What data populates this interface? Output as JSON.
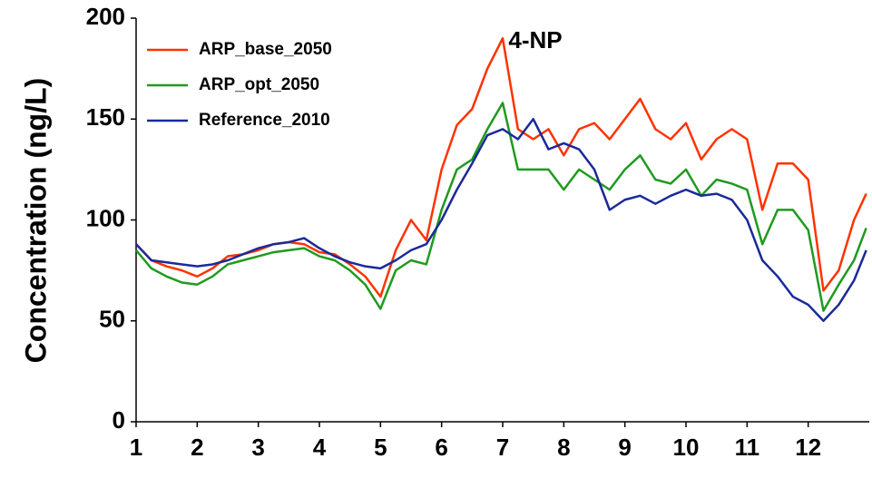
{
  "chart_data": {
    "type": "line",
    "title": "4-NP",
    "y_label": "Concentration (ng/L)",
    "x": [
      1,
      1.25,
      1.5,
      1.75,
      2,
      2.25,
      2.5,
      2.75,
      3,
      3.25,
      3.5,
      3.75,
      4,
      4.25,
      4.5,
      4.75,
      5,
      5.25,
      5.5,
      5.75,
      6,
      6.25,
      6.5,
      6.75,
      7,
      7.25,
      7.5,
      7.75,
      8,
      8.25,
      8.5,
      8.75,
      9,
      9.25,
      9.5,
      9.75,
      10,
      10.25,
      10.5,
      10.75,
      11,
      11.25,
      11.5,
      11.75,
      12,
      12.25,
      12.5,
      12.75,
      12.95
    ],
    "series": [
      {
        "name": "ARP_base_2050",
        "color": "#ff3300",
        "values": [
          88,
          80,
          77,
          75,
          72,
          76,
          82,
          83,
          85,
          88,
          89,
          88,
          84,
          83,
          78,
          72,
          62,
          85,
          100,
          90,
          125,
          147,
          155,
          175,
          190,
          145,
          140,
          145,
          132,
          145,
          148,
          140,
          150,
          160,
          145,
          140,
          148,
          130,
          140,
          145,
          140,
          105,
          128,
          128,
          120,
          65,
          75,
          100,
          113
        ]
      },
      {
        "name": "ARP_opt_2050",
        "color": "#1f9a1f",
        "values": [
          85,
          76,
          72,
          69,
          68,
          72,
          78,
          80,
          82,
          84,
          85,
          86,
          82,
          80,
          75,
          68,
          56,
          75,
          80,
          78,
          105,
          125,
          130,
          145,
          158,
          125,
          125,
          125,
          115,
          125,
          120,
          115,
          125,
          132,
          120,
          118,
          125,
          112,
          120,
          118,
          115,
          88,
          105,
          105,
          95,
          55,
          68,
          80,
          96
        ]
      },
      {
        "name": "Reference_2010",
        "color": "#1a2a99",
        "values": [
          88,
          80,
          79,
          78,
          77,
          78,
          80,
          83,
          86,
          88,
          89,
          91,
          86,
          82,
          79,
          77,
          76,
          80,
          85,
          88,
          100,
          115,
          128,
          142,
          145,
          140,
          150,
          135,
          138,
          135,
          125,
          105,
          110,
          112,
          108,
          112,
          115,
          112,
          113,
          110,
          100,
          80,
          72,
          62,
          58,
          50,
          58,
          70,
          85
        ]
      }
    ],
    "xlim": [
      1,
      13
    ],
    "ylim": [
      0,
      200
    ],
    "xticks": [
      1,
      2,
      3,
      4,
      5,
      6,
      7,
      8,
      9,
      10,
      11,
      12
    ],
    "yticks": [
      0,
      50,
      100,
      150,
      200
    ],
    "legend": "upper-left"
  }
}
